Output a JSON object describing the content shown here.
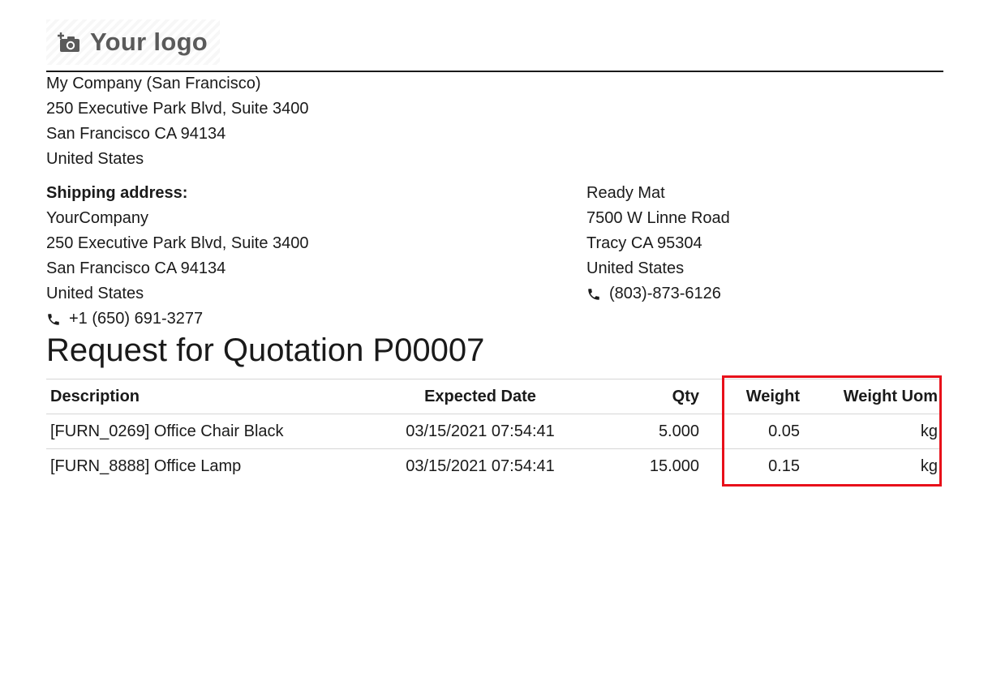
{
  "logo": {
    "text": "Your logo",
    "icon": "camera-plus-icon"
  },
  "company": {
    "lines": [
      "My Company (San Francisco)",
      "250 Executive Park Blvd, Suite 3400",
      "San Francisco CA 94134",
      "United States"
    ]
  },
  "shipping": {
    "label": "Shipping address:",
    "lines": [
      "YourCompany",
      "250 Executive Park Blvd, Suite 3400",
      "San Francisco CA 94134",
      "United States"
    ],
    "phone": "+1 (650) 691-3277"
  },
  "vendor": {
    "lines": [
      "Ready Mat",
      "7500 W Linne Road",
      "Tracy CA 95304",
      "United States"
    ],
    "phone": "(803)-873-6126"
  },
  "title": "Request for Quotation P00007",
  "table": {
    "headers": [
      "Description",
      "Expected Date",
      "Qty",
      "Weight",
      "Weight Uom"
    ],
    "rows": [
      {
        "description": "[FURN_0269] Office Chair Black",
        "date": "03/15/2021 07:54:41",
        "qty": "5.000",
        "weight": "0.05",
        "uom": "kg"
      },
      {
        "description": "[FURN_8888] Office Lamp",
        "date": "03/15/2021 07:54:41",
        "qty": "15.000",
        "weight": "0.15",
        "uom": "kg"
      }
    ]
  },
  "colors": {
    "highlight": "#e8101a",
    "text": "#1a1a1a",
    "logo_text": "#5a5a5a"
  }
}
